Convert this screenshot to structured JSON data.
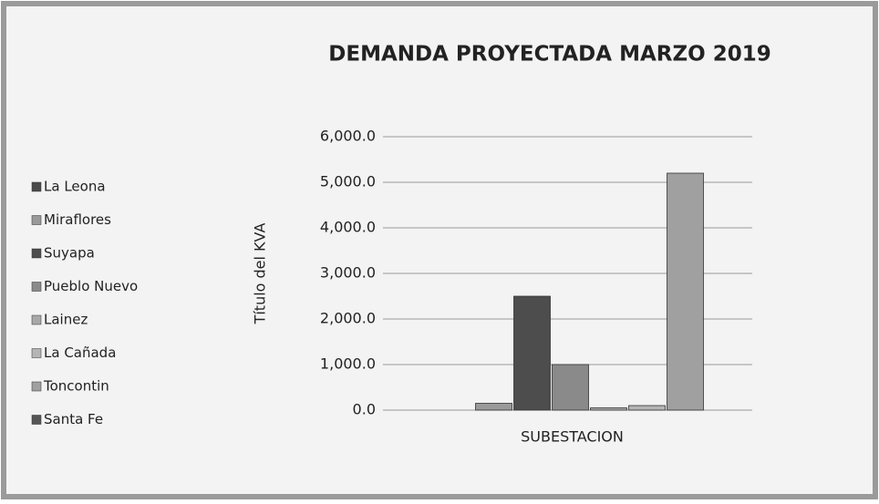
{
  "chart_data": {
    "type": "bar",
    "title": "DEMANDA PROYECTADA  MARZO 2019",
    "y_label": "Título del KVA",
    "categories": [
      "SUBESTACION"
    ],
    "series": [
      {
        "name": "La Leona",
        "color": "#4a4a4a",
        "values": [
          0
        ]
      },
      {
        "name": "Miraflores",
        "color": "#9a9a9a",
        "values": [
          150
        ]
      },
      {
        "name": "Suyapa",
        "color": "#4d4d4d",
        "values": [
          2500
        ]
      },
      {
        "name": "Pueblo Nuevo",
        "color": "#8a8a8a",
        "values": [
          1000
        ]
      },
      {
        "name": "Lainez",
        "color": "#a8a8a8",
        "values": [
          50
        ]
      },
      {
        "name": "La Cañada",
        "color": "#b5b5b5",
        "values": [
          100
        ]
      },
      {
        "name": "Toncontin",
        "color": "#a0a0a0",
        "values": [
          5200
        ]
      },
      {
        "name": "Santa Fe",
        "color": "#555555",
        "values": [
          0
        ]
      }
    ],
    "ylim": [
      0,
      6000
    ],
    "yticks": [
      {
        "value": 0,
        "label": "0.0"
      },
      {
        "value": 1000,
        "label": "1,000.0"
      },
      {
        "value": 2000,
        "label": "2,000.0"
      },
      {
        "value": 3000,
        "label": "3,000.0"
      },
      {
        "value": 4000,
        "label": "4,000.0"
      },
      {
        "value": 5000,
        "label": "5,000.0"
      },
      {
        "value": 6000,
        "label": "6,000.0"
      }
    ],
    "grid": true,
    "legend": "left"
  }
}
